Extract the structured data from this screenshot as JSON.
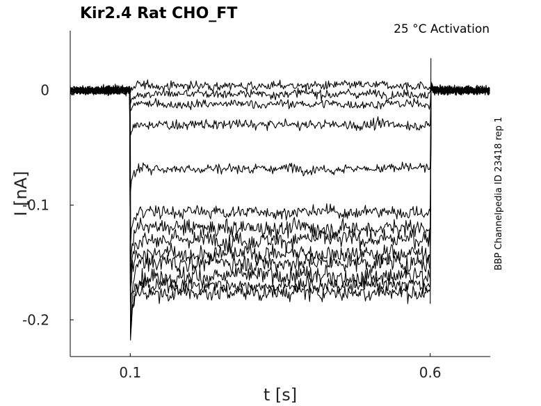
{
  "chart_data": {
    "type": "line",
    "title": "Kir2.4  Rat  CHO_FT",
    "annotation": "25 °C  Activation",
    "side_label": "BBP Channelpedia ID 23418 rep 1",
    "xlabel": "t [s]",
    "ylabel": "I [nA]",
    "xlim": [
      0.0,
      0.7
    ],
    "ylim": [
      -0.232,
      0.052
    ],
    "x_ticks": [
      {
        "value": 0.1,
        "label": "0.1"
      },
      {
        "value": 0.6,
        "label": "0.6"
      }
    ],
    "y_ticks": [
      {
        "value": 0.0,
        "label": "0"
      },
      {
        "value": -0.1,
        "label": "-0.1"
      },
      {
        "value": -0.2,
        "label": "-0.2"
      }
    ],
    "grid": false,
    "pulse": {
      "start": 0.1,
      "end": 0.6
    },
    "series": [
      {
        "steady": 0.004,
        "noise": 0.0035
      },
      {
        "steady": -0.003,
        "noise": 0.0035
      },
      {
        "steady": -0.012,
        "noise": 0.0035
      },
      {
        "steady": -0.03,
        "noise": 0.004
      },
      {
        "steady": -0.068,
        "noise": 0.004
      },
      {
        "steady": -0.106,
        "noise": 0.005
      },
      {
        "steady": -0.12,
        "noise": 0.007
      },
      {
        "steady": -0.13,
        "noise": 0.007
      },
      {
        "steady": -0.142,
        "noise": 0.007
      },
      {
        "steady": -0.15,
        "noise": 0.007
      },
      {
        "steady": -0.162,
        "noise": 0.007
      },
      {
        "steady": -0.17,
        "noise": 0.006
      },
      {
        "steady": -0.176,
        "noise": 0.006
      }
    ]
  }
}
